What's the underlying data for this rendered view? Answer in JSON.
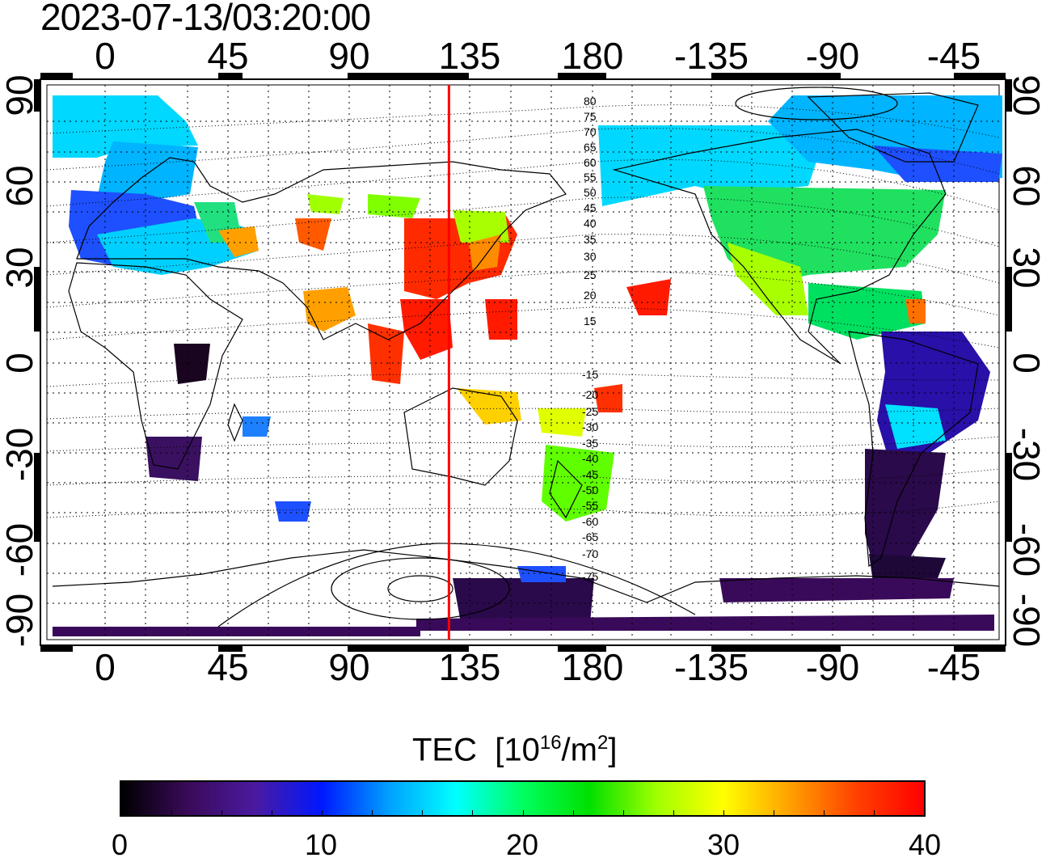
{
  "timestamp": "2023-07-13/03:20:00",
  "map": {
    "lon_tick_labels": [
      "0",
      "45",
      "90",
      "135",
      "180",
      "-135",
      "-90",
      "-45"
    ],
    "lon_tick_values": [
      0,
      45,
      90,
      135,
      180,
      225,
      270,
      315
    ],
    "lat_tick_labels": [
      "90",
      "60",
      "30",
      "0",
      "-30",
      "-60",
      "-90"
    ],
    "lat_tick_values": [
      90,
      60,
      30,
      0,
      -30,
      -60,
      -90
    ],
    "lon_range": [
      -22,
      338
    ],
    "lat_range": [
      -90,
      90
    ],
    "grid_style": "dotted",
    "marker_line": {
      "lon": 130,
      "color": "#ff0000"
    },
    "contour_labels": [
      "80",
      "75",
      "70",
      "65",
      "60",
      "55",
      "50",
      "45",
      "40",
      "35",
      "30",
      "25",
      "20",
      "15",
      "-15",
      "-20",
      "-25",
      "-30",
      "-35",
      "-40",
      "-45",
      "-50",
      "-55",
      "-60",
      "-65",
      "-70",
      "-75"
    ]
  },
  "colorbar": {
    "title": "TEC",
    "unit_prefix": "[10",
    "unit_exp": "16",
    "unit_mid": "/m",
    "unit_exp2": "2",
    "unit_suffix": "]",
    "tick_labels": [
      "0",
      "10",
      "20",
      "30",
      "40"
    ],
    "tick_values": [
      0,
      10,
      20,
      30,
      40
    ],
    "range": [
      0,
      40
    ],
    "colors": [
      "#000000",
      "#3a0a5a",
      "#4a1aa0",
      "#0018ff",
      "#00a0ff",
      "#00ffff",
      "#00ff60",
      "#00e000",
      "#a0ff00",
      "#ffff00",
      "#ffa000",
      "#ff4000",
      "#ff0000"
    ]
  }
}
